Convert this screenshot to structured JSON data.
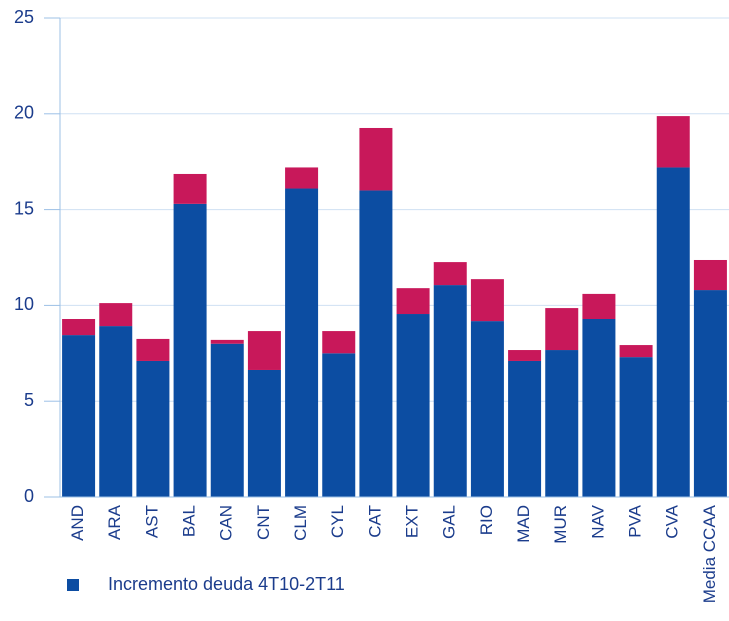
{
  "chart_data": {
    "type": "stacked-bar",
    "categories": [
      "AND",
      "ARA",
      "AST",
      "BAL",
      "CAN",
      "CNT",
      "CLM",
      "CYL",
      "CAT",
      "EXT",
      "GAL",
      "RIO",
      "MAD",
      "MUR",
      "NAV",
      "PVA",
      "CVA",
      "Media CCAA"
    ],
    "series": [
      {
        "name": "Incremento deuda 4T10-2T11",
        "color": "#0c4da2",
        "values": [
          8.45,
          8.92,
          7.1,
          15.3,
          8.0,
          6.63,
          16.1,
          7.5,
          16.0,
          9.55,
          11.06,
          9.18,
          7.1,
          7.67,
          9.29,
          7.3,
          17.2,
          10.8
        ]
      },
      {
        "color": "#c8185a",
        "values": [
          0.84,
          1.2,
          1.15,
          1.56,
          0.2,
          2.03,
          1.1,
          1.16,
          3.26,
          1.35,
          1.2,
          2.19,
          0.57,
          2.19,
          1.31,
          0.63,
          2.68,
          1.57
        ]
      }
    ],
    "ylim": [
      0,
      25
    ],
    "yticks": [
      0,
      5,
      10,
      15,
      20,
      25
    ],
    "grid": true
  }
}
